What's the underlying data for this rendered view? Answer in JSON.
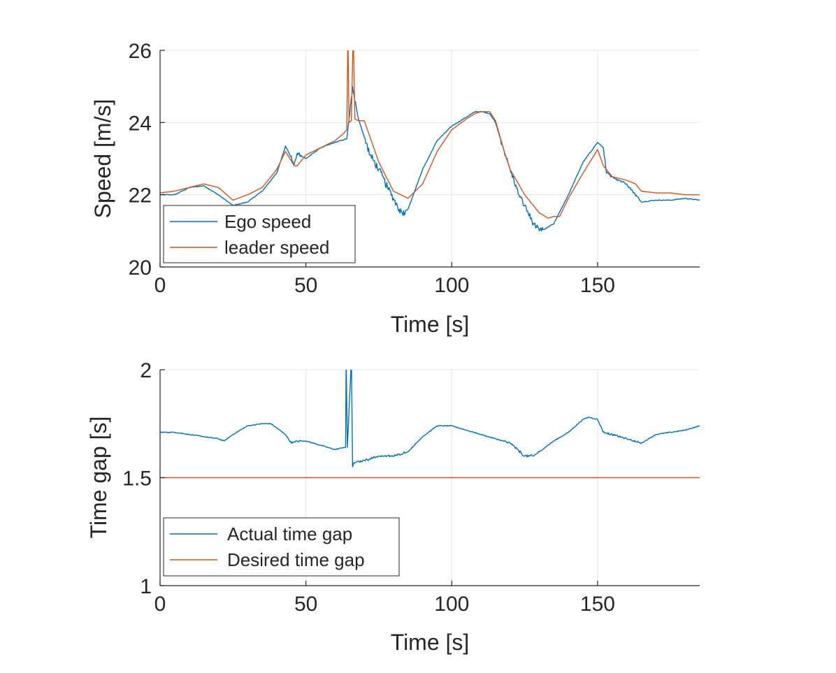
{
  "colors": {
    "series_blue": "#0072BD",
    "series_orange": "#D95319",
    "grid": "#e4e4e4",
    "axis": "#262626"
  },
  "chart_data": [
    {
      "type": "line",
      "title": "",
      "xlabel": "Time [s]",
      "ylabel": "Speed [m/s]",
      "xlim": [
        0,
        185
      ],
      "ylim": [
        20,
        26
      ],
      "xticks": [
        0,
        50,
        100,
        150
      ],
      "yticks": [
        20,
        22,
        24,
        26
      ],
      "xtick_labels": [
        "0",
        "50",
        "100",
        "150"
      ],
      "ytick_labels": [
        "20",
        "22",
        "24",
        "26"
      ],
      "grid": true,
      "legend_position": "bottom-left",
      "series": [
        {
          "name": "Ego speed",
          "color": "#0072BD",
          "x": [
            0,
            5,
            10,
            15,
            20,
            25,
            30,
            35,
            40,
            43,
            46,
            47,
            50,
            55,
            60,
            64,
            65,
            66,
            68,
            70,
            72,
            75,
            78,
            80,
            82,
            83,
            85,
            90,
            95,
            100,
            105,
            108,
            110,
            113,
            115,
            118,
            120,
            123,
            125,
            128,
            130,
            132,
            135,
            140,
            145,
            150,
            152,
            153,
            155,
            160,
            165,
            170,
            175,
            180,
            185
          ],
          "y": [
            22.0,
            22.0,
            22.2,
            22.25,
            22.0,
            21.7,
            21.8,
            22.1,
            22.6,
            23.35,
            22.85,
            23.15,
            23.0,
            23.3,
            23.45,
            23.55,
            24.2,
            25.0,
            24.1,
            23.6,
            23.1,
            22.7,
            22.2,
            21.9,
            21.6,
            21.5,
            21.6,
            22.7,
            23.5,
            23.9,
            24.15,
            24.3,
            24.3,
            24.25,
            24.0,
            23.2,
            22.7,
            22.0,
            21.7,
            21.2,
            21.0,
            21.05,
            21.2,
            22.0,
            22.9,
            23.45,
            23.3,
            22.6,
            22.5,
            22.3,
            21.8,
            21.85,
            21.85,
            21.9,
            21.85
          ],
          "noise_segments": [
            [
              70,
              84,
              0.2
            ],
            [
              117,
              131,
              0.15
            ],
            [
              64,
              67,
              0.15
            ],
            [
              45,
              48,
              0.15
            ],
            [
              152,
              164,
              0.06
            ]
          ]
        },
        {
          "name": "leader speed",
          "color": "#D95319",
          "x": [
            0,
            5,
            10,
            15,
            20,
            25,
            30,
            35,
            40,
            43,
            46,
            47,
            50,
            55,
            60,
            63,
            64,
            64.4,
            64.8,
            65.6,
            66.2,
            66.8,
            68,
            70,
            75,
            80,
            85,
            90,
            95,
            100,
            105,
            108,
            110,
            113,
            115,
            118,
            120,
            125,
            130,
            133,
            135,
            137,
            140,
            145,
            150,
            152,
            155,
            160,
            163,
            165,
            170,
            175,
            180,
            185
          ],
          "y": [
            22.05,
            22.1,
            22.2,
            22.3,
            22.2,
            21.85,
            22.0,
            22.2,
            22.7,
            23.2,
            22.8,
            22.8,
            23.1,
            23.3,
            23.5,
            23.7,
            23.8,
            26.5,
            24.0,
            24.05,
            26.5,
            24.1,
            24.05,
            24.05,
            22.9,
            22.1,
            21.9,
            22.3,
            23.2,
            23.8,
            24.1,
            24.25,
            24.3,
            24.3,
            24.05,
            23.2,
            22.7,
            22.0,
            21.5,
            21.35,
            21.4,
            21.4,
            21.9,
            22.6,
            23.25,
            22.8,
            22.5,
            22.4,
            22.3,
            22.1,
            22.05,
            22.05,
            22.0,
            22.0
          ]
        }
      ]
    },
    {
      "type": "line",
      "title": "",
      "xlabel": "Time [s]",
      "ylabel": "Time gap [s]",
      "xlim": [
        0,
        185
      ],
      "ylim": [
        1,
        2
      ],
      "xticks": [
        0,
        50,
        100,
        150
      ],
      "yticks": [
        1,
        1.5,
        2
      ],
      "xtick_labels": [
        "0",
        "50",
        "100",
        "150"
      ],
      "ytick_labels": [
        "1",
        "1.5",
        "2"
      ],
      "grid": true,
      "legend_position": "bottom-left",
      "series": [
        {
          "name": "Actual time gap",
          "color": "#0072BD",
          "x": [
            0,
            5,
            10,
            15,
            20,
            22,
            25,
            30,
            35,
            38,
            40,
            43,
            45,
            47,
            50,
            55,
            60,
            63,
            63.6,
            63.8,
            64.2,
            65.6,
            66.0,
            66.4,
            67,
            70,
            75,
            80,
            85,
            90,
            95,
            100,
            105,
            110,
            115,
            120,
            125,
            128,
            130,
            135,
            140,
            145,
            147,
            150,
            152,
            155,
            160,
            165,
            170,
            175,
            180,
            185
          ],
          "y": [
            1.71,
            1.71,
            1.7,
            1.69,
            1.68,
            1.67,
            1.7,
            1.74,
            1.75,
            1.75,
            1.73,
            1.7,
            1.66,
            1.67,
            1.67,
            1.65,
            1.63,
            1.64,
            1.64,
            2.05,
            1.64,
            2.05,
            1.55,
            1.57,
            1.57,
            1.58,
            1.6,
            1.6,
            1.62,
            1.69,
            1.74,
            1.74,
            1.72,
            1.7,
            1.68,
            1.66,
            1.6,
            1.6,
            1.62,
            1.67,
            1.71,
            1.77,
            1.78,
            1.77,
            1.71,
            1.7,
            1.68,
            1.66,
            1.7,
            1.71,
            1.72,
            1.74
          ],
          "noise_segments": [
            [
              66,
              84,
              0.008
            ],
            [
              118,
              130,
              0.01
            ],
            [
              150,
              165,
              0.006
            ],
            [
              44,
              48,
              0.008
            ]
          ]
        },
        {
          "name": "Desired time gap",
          "color": "#D95319",
          "x": [
            0,
            185
          ],
          "y": [
            1.5,
            1.5
          ]
        }
      ]
    }
  ]
}
